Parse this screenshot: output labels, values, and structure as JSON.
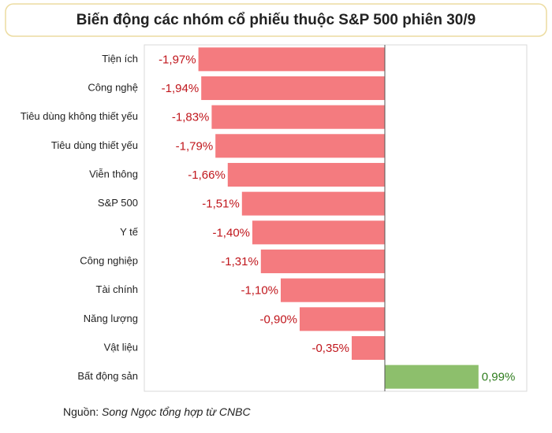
{
  "chart_data": {
    "type": "bar",
    "orientation": "horizontal",
    "title": "Biến động các nhóm cổ phiếu thuộc S&P 500 phiên 30/9",
    "categories": [
      "Tiện ích",
      "Công nghệ",
      "Tiêu dùng không thiết yếu",
      "Tiêu dùng thiết yếu",
      "Viễn thông",
      "S&P 500",
      "Y tế",
      "Công nghiệp",
      "Tài chính",
      "Năng lượng",
      "Vật liệu",
      "Bất động sản"
    ],
    "values": [
      -1.97,
      -1.94,
      -1.83,
      -1.79,
      -1.66,
      -1.51,
      -1.4,
      -1.31,
      -1.1,
      -0.9,
      -0.35,
      0.99
    ],
    "value_labels": [
      "-1,97%",
      "-1,94%",
      "-1,83%",
      "-1,79%",
      "-1,66%",
      "-1,51%",
      "-1,40%",
      "-1,31%",
      "-1,10%",
      "-0,90%",
      "-0,35%",
      "0,99%"
    ],
    "negative_color": "#f47b7f",
    "positive_color": "#8dbf6c",
    "negative_label_color": "#c0161c",
    "positive_label_color": "#2f7d1e",
    "xlim": [
      -2.5,
      1.5
    ],
    "source_label": "Nguồn:",
    "source": "Song Ngọc tổng hợp từ CNBC"
  }
}
